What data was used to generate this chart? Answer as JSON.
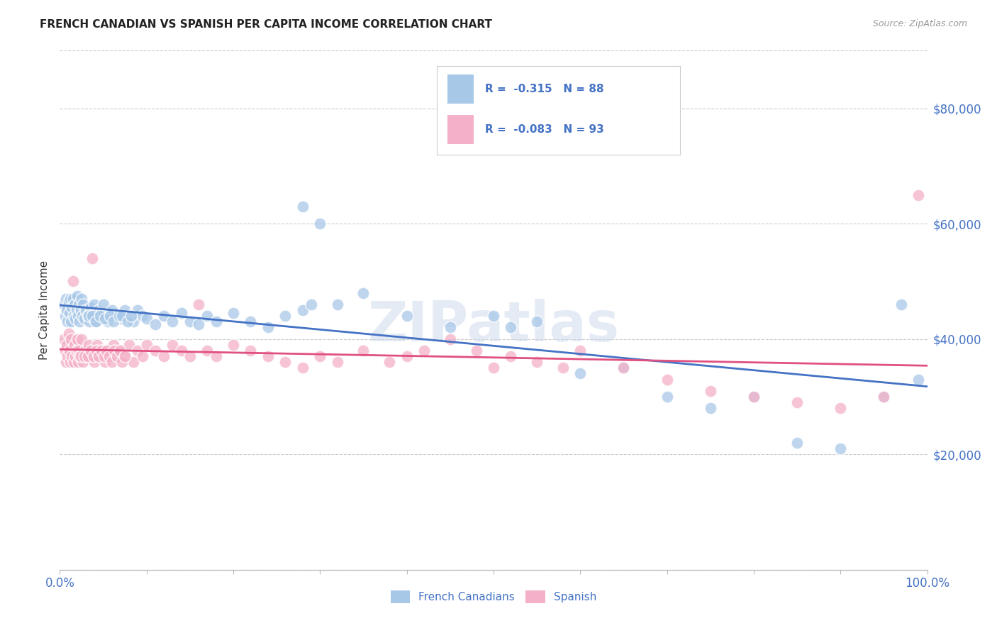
{
  "title": "FRENCH CANADIAN VS SPANISH PER CAPITA INCOME CORRELATION CHART",
  "source": "Source: ZipAtlas.com",
  "ylabel": "Per Capita Income",
  "watermark": "ZIPatlas",
  "legend_r1": "-0.315",
  "legend_n1": "N = 88",
  "legend_r2": "-0.083",
  "legend_n2": "N = 93",
  "ytick_labels": [
    "$20,000",
    "$40,000",
    "$60,000",
    "$80,000"
  ],
  "ytick_values": [
    20000,
    40000,
    60000,
    80000
  ],
  "color_blue": "#a8c8e8",
  "color_pink": "#f4b0c8",
  "color_blue_line": "#4472c4",
  "color_pink_line": "#e05080",
  "color_blue_label": "#4472c4",
  "french_canadians_x": [
    0.005,
    0.006,
    0.007,
    0.008,
    0.009,
    0.01,
    0.011,
    0.012,
    0.013,
    0.014,
    0.015,
    0.016,
    0.017,
    0.018,
    0.019,
    0.02,
    0.021,
    0.022,
    0.023,
    0.024,
    0.025,
    0.026,
    0.027,
    0.028,
    0.03,
    0.032,
    0.034,
    0.036,
    0.038,
    0.04,
    0.042,
    0.045,
    0.048,
    0.05,
    0.055,
    0.06,
    0.065,
    0.07,
    0.075,
    0.08,
    0.085,
    0.09,
    0.095,
    0.1,
    0.11,
    0.12,
    0.13,
    0.14,
    0.15,
    0.16,
    0.17,
    0.18,
    0.2,
    0.22,
    0.24,
    0.26,
    0.28,
    0.3,
    0.32,
    0.35,
    0.28,
    0.29,
    0.4,
    0.45,
    0.5,
    0.52,
    0.55,
    0.6,
    0.65,
    0.7,
    0.75,
    0.8,
    0.85,
    0.9,
    0.95,
    0.97,
    0.99,
    0.033,
    0.037,
    0.041,
    0.046,
    0.052,
    0.058,
    0.062,
    0.068,
    0.072,
    0.078,
    0.082
  ],
  "french_canadians_y": [
    46000,
    44000,
    47000,
    45000,
    43000,
    46500,
    44500,
    47000,
    43000,
    45500,
    47000,
    44000,
    46000,
    43500,
    45000,
    47500,
    44000,
    46000,
    43000,
    45000,
    47000,
    44000,
    46000,
    43500,
    45000,
    44000,
    43000,
    45500,
    44000,
    46000,
    43000,
    45000,
    44500,
    46000,
    43000,
    45000,
    44000,
    43500,
    45000,
    44000,
    43000,
    45000,
    44000,
    43500,
    42500,
    44000,
    43000,
    44500,
    43000,
    42500,
    44000,
    43000,
    44500,
    43000,
    42000,
    44000,
    63000,
    60000,
    46000,
    48000,
    45000,
    46000,
    44000,
    42000,
    44000,
    42000,
    43000,
    34000,
    35000,
    30000,
    28000,
    30000,
    22000,
    21000,
    30000,
    46000,
    33000,
    44000,
    44000,
    43000,
    44000,
    43500,
    44000,
    43000,
    44000,
    44000,
    43000,
    44000
  ],
  "spanish_x": [
    0.005,
    0.006,
    0.007,
    0.008,
    0.009,
    0.01,
    0.011,
    0.012,
    0.013,
    0.014,
    0.015,
    0.016,
    0.017,
    0.018,
    0.019,
    0.02,
    0.021,
    0.022,
    0.023,
    0.025,
    0.027,
    0.029,
    0.031,
    0.033,
    0.035,
    0.037,
    0.04,
    0.043,
    0.046,
    0.049,
    0.052,
    0.055,
    0.058,
    0.062,
    0.066,
    0.07,
    0.075,
    0.08,
    0.085,
    0.09,
    0.095,
    0.1,
    0.11,
    0.12,
    0.13,
    0.14,
    0.15,
    0.16,
    0.17,
    0.18,
    0.2,
    0.22,
    0.24,
    0.26,
    0.28,
    0.3,
    0.32,
    0.35,
    0.38,
    0.4,
    0.42,
    0.45,
    0.48,
    0.5,
    0.52,
    0.55,
    0.58,
    0.6,
    0.65,
    0.7,
    0.75,
    0.8,
    0.85,
    0.9,
    0.95,
    0.024,
    0.028,
    0.032,
    0.036,
    0.039,
    0.042,
    0.045,
    0.048,
    0.051,
    0.054,
    0.057,
    0.06,
    0.063,
    0.066,
    0.069,
    0.072,
    0.075,
    0.99
  ],
  "spanish_y": [
    40000,
    38000,
    36000,
    39000,
    37000,
    41000,
    38000,
    36000,
    40000,
    37000,
    50000,
    36000,
    39000,
    37000,
    38000,
    40000,
    36000,
    38000,
    37000,
    40000,
    36000,
    38000,
    37000,
    39000,
    37000,
    54000,
    36000,
    39000,
    37000,
    38000,
    36000,
    38000,
    37000,
    39000,
    37000,
    38000,
    37000,
    39000,
    36000,
    38000,
    37000,
    39000,
    38000,
    37000,
    39000,
    38000,
    37000,
    46000,
    38000,
    37000,
    39000,
    38000,
    37000,
    36000,
    35000,
    37000,
    36000,
    38000,
    36000,
    37000,
    38000,
    40000,
    38000,
    35000,
    37000,
    36000,
    35000,
    38000,
    35000,
    33000,
    31000,
    30000,
    29000,
    28000,
    30000,
    37000,
    37000,
    37000,
    38000,
    37000,
    38000,
    37000,
    38000,
    37000,
    38000,
    37000,
    36000,
    38000,
    37000,
    38000,
    36000,
    37000,
    65000
  ]
}
